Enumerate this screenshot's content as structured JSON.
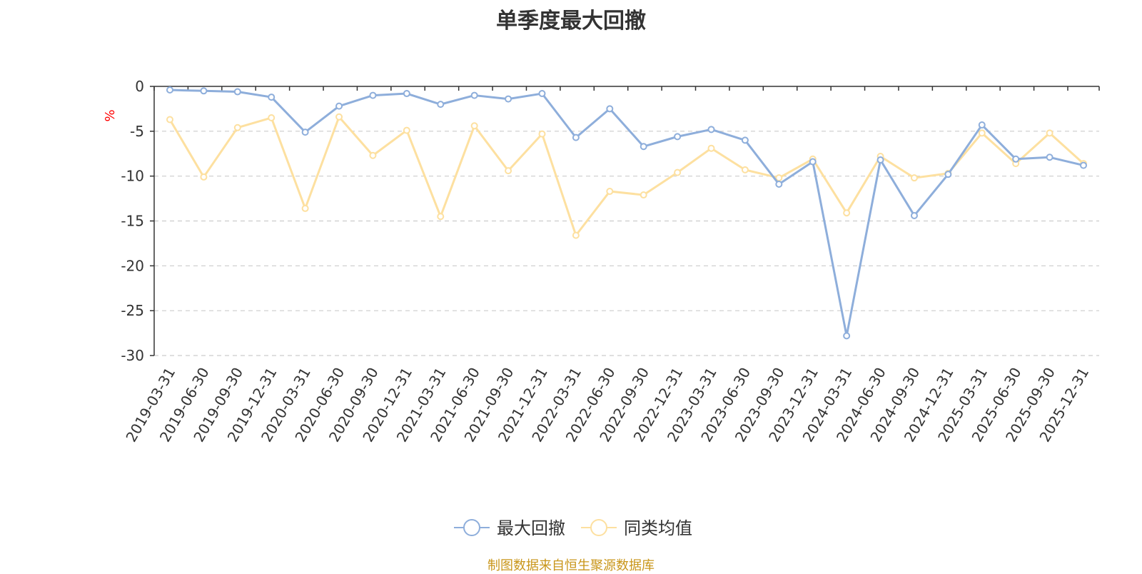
{
  "chart_data": {
    "type": "line",
    "title": "单季度最大回撤",
    "ylabel": "%",
    "ylim": [
      -30,
      0
    ],
    "yticks": [
      0,
      -5,
      -10,
      -15,
      -20,
      -25,
      -30
    ],
    "grid": true,
    "legend_position": "bottom-center",
    "x": [
      "2019-03-31",
      "2019-06-30",
      "2019-09-30",
      "2019-12-31",
      "2020-03-31",
      "2020-06-30",
      "2020-09-30",
      "2020-12-31",
      "2021-03-31",
      "2021-06-30",
      "2021-09-30",
      "2021-12-31",
      "2022-03-31",
      "2022-06-30",
      "2022-09-30",
      "2022-12-31",
      "2023-03-31",
      "2023-06-30",
      "2023-09-30",
      "2023-12-31",
      "2024-03-31",
      "2024-06-30",
      "2024-09-30",
      "2024-12-31",
      "2025-03-31",
      "2025-06-30",
      "2025-09-30",
      "2025-12-31"
    ],
    "series": [
      {
        "name": "最大回撤",
        "color": "#8eaedb",
        "values": [
          -0.4,
          -0.5,
          -0.6,
          -1.2,
          -5.1,
          -2.2,
          -1.0,
          -0.8,
          -2.0,
          -1.0,
          -1.4,
          -0.8,
          -5.7,
          -2.5,
          -6.7,
          -5.6,
          -4.8,
          -6.0,
          -10.9,
          -8.4,
          -27.8,
          -8.2,
          -14.4,
          -9.8,
          -4.3,
          -8.1,
          -7.9,
          -8.8
        ]
      },
      {
        "name": "同类均值",
        "color": "#fde0a0",
        "values": [
          -3.7,
          -10.1,
          -4.6,
          -3.5,
          -13.6,
          -3.4,
          -7.7,
          -4.9,
          -14.5,
          -4.4,
          -9.4,
          -5.3,
          -16.6,
          -11.7,
          -12.1,
          -9.6,
          -6.9,
          -9.3,
          -10.2,
          -8.1,
          -14.1,
          -7.8,
          -10.2,
          -9.7,
          -5.2,
          -8.6,
          -5.2,
          -8.6
        ]
      }
    ],
    "source_note": "制图数据来自恒生聚源数据库"
  }
}
